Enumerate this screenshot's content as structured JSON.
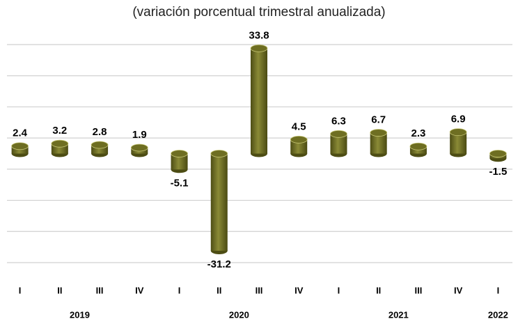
{
  "chart_data": {
    "type": "bar",
    "title": "(variación porcentual trimestral anualizada)",
    "categories": [
      "I",
      "II",
      "III",
      "IV",
      "I",
      "II",
      "III",
      "IV",
      "I",
      "II",
      "III",
      "IV",
      "I"
    ],
    "years": [
      "2019",
      "2019",
      "2019",
      "2019",
      "2020",
      "2020",
      "2020",
      "2020",
      "2021",
      "2021",
      "2021",
      "2021",
      "2022"
    ],
    "values": [
      2.4,
      3.2,
      2.8,
      1.9,
      -5.1,
      -31.2,
      33.8,
      4.5,
      6.3,
      6.7,
      2.3,
      6.9,
      -1.5
    ],
    "color": "#6e6e22",
    "ylim": [
      -35,
      35
    ],
    "yticks": [
      -35,
      -25,
      -15,
      -5,
      5,
      15,
      25,
      35
    ],
    "grid": true
  }
}
